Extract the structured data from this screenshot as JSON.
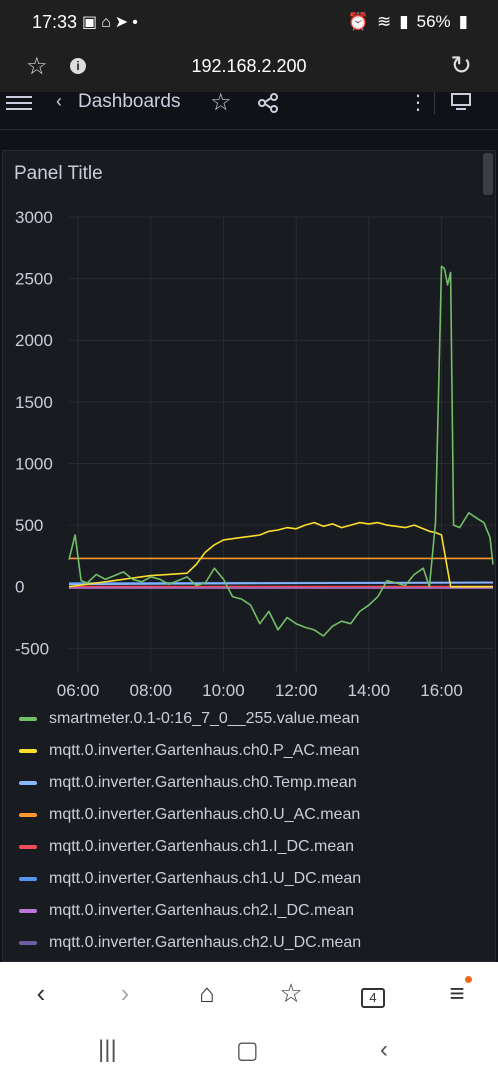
{
  "status_bar": {
    "time": "17:33",
    "left_icons": "▣⌂➤•",
    "battery": "56%"
  },
  "browser": {
    "url": "192.168.2.200"
  },
  "grafana_nav": {
    "back_label": "Dashboards"
  },
  "panel": {
    "title": "Panel Title"
  },
  "chart_data": {
    "type": "line",
    "title": "Panel Title",
    "xlabel": "",
    "ylabel": "",
    "ylim": [
      -700,
      3000
    ],
    "y_ticks": [
      "3000",
      "2500",
      "2000",
      "1500",
      "1000",
      "500",
      "0",
      "-500"
    ],
    "y_tick_values": [
      3000,
      2500,
      2000,
      1500,
      1000,
      500,
      0,
      -500
    ],
    "x_ticks": [
      "06:00",
      "08:00",
      "10:00",
      "12:00",
      "14:00",
      "16:00"
    ],
    "x_tick_values": [
      "05:45",
      "06:00",
      "08:00",
      "10:00",
      "12:00",
      "14:00",
      "16:00",
      "17:25"
    ],
    "xlim": [
      "05:45",
      "17:25"
    ],
    "grid": true,
    "legend_position": "bottom",
    "series": [
      {
        "name": "smartmeter.0.1-0:16_7_0__255.value.mean",
        "color": "#73bf69",
        "x": [
          "05:45",
          "05:55",
          "06:05",
          "06:15",
          "06:30",
          "06:45",
          "07:00",
          "07:15",
          "07:30",
          "07:45",
          "08:00",
          "08:15",
          "08:30",
          "08:45",
          "09:00",
          "09:15",
          "09:30",
          "09:45",
          "10:00",
          "10:15",
          "10:30",
          "10:45",
          "11:00",
          "11:15",
          "11:30",
          "11:45",
          "12:00",
          "12:15",
          "12:30",
          "12:45",
          "13:00",
          "13:15",
          "13:30",
          "13:45",
          "14:00",
          "14:15",
          "14:30",
          "14:45",
          "15:00",
          "15:15",
          "15:30",
          "15:40",
          "15:50",
          "16:00",
          "16:05",
          "16:10",
          "16:15",
          "16:20",
          "16:30",
          "16:45",
          "17:00",
          "17:10",
          "17:20",
          "17:25"
        ],
        "values": [
          220,
          420,
          50,
          30,
          100,
          60,
          90,
          120,
          60,
          40,
          80,
          60,
          20,
          50,
          80,
          10,
          30,
          150,
          60,
          -80,
          -100,
          -150,
          -300,
          -200,
          -350,
          -250,
          -300,
          -330,
          -350,
          -400,
          -320,
          -280,
          -300,
          -200,
          -150,
          -80,
          50,
          30,
          10,
          100,
          150,
          0,
          520,
          2600,
          2580,
          2450,
          2550,
          500,
          480,
          600,
          550,
          520,
          400,
          180
        ]
      },
      {
        "name": "mqtt.0.inverter.Gartenhaus.ch0.P_AC.mean",
        "color": "#fade2a",
        "x": [
          "05:45",
          "06:00",
          "06:30",
          "07:00",
          "07:30",
          "08:00",
          "08:30",
          "09:00",
          "09:15",
          "09:30",
          "09:45",
          "10:00",
          "10:30",
          "11:00",
          "11:15",
          "11:30",
          "11:45",
          "12:00",
          "12:15",
          "12:30",
          "12:45",
          "13:00",
          "13:15",
          "13:30",
          "13:45",
          "14:00",
          "14:15",
          "14:30",
          "14:45",
          "15:00",
          "15:15",
          "15:30",
          "15:40",
          "15:50",
          "16:00",
          "16:15",
          "16:30",
          "16:45",
          "17:00",
          "17:15",
          "17:25"
        ],
        "values": [
          0,
          10,
          30,
          50,
          70,
          90,
          100,
          110,
          180,
          280,
          340,
          380,
          400,
          420,
          450,
          460,
          480,
          470,
          500,
          520,
          490,
          510,
          480,
          500,
          520,
          510,
          520,
          500,
          490,
          480,
          500,
          470,
          450,
          440,
          420,
          0,
          0,
          0,
          0,
          0,
          0
        ]
      },
      {
        "name": "mqtt.0.inverter.Gartenhaus.ch0.Temp.mean",
        "color": "#8ab8ff",
        "x": [
          "05:45",
          "17:25"
        ],
        "values": [
          20,
          35
        ]
      },
      {
        "name": "mqtt.0.inverter.Gartenhaus.ch0.U_AC.mean",
        "color": "#ff9830",
        "x": [
          "05:45",
          "17:25"
        ],
        "values": [
          230,
          230
        ]
      },
      {
        "name": "mqtt.0.inverter.Gartenhaus.ch1.I_DC.mean",
        "color": "#f2495c",
        "x": [
          "05:45",
          "17:25"
        ],
        "values": [
          2,
          2
        ]
      },
      {
        "name": "mqtt.0.inverter.Gartenhaus.ch1.U_DC.mean",
        "color": "#5794f2",
        "x": [
          "05:45",
          "17:25"
        ],
        "values": [
          30,
          35
        ]
      },
      {
        "name": "mqtt.0.inverter.Gartenhaus.ch2.I_DC.mean",
        "color": "#b877d9",
        "x": [
          "05:45",
          "17:25"
        ],
        "values": [
          -10,
          -10
        ]
      },
      {
        "name": "mqtt.0.inverter.Gartenhaus.ch2.U_DC.mean",
        "color": "#705da0",
        "x": [
          "05:45",
          "17:25"
        ],
        "values": [
          25,
          30
        ]
      }
    ]
  },
  "bottom_nav": {
    "tabs_count": "4"
  }
}
